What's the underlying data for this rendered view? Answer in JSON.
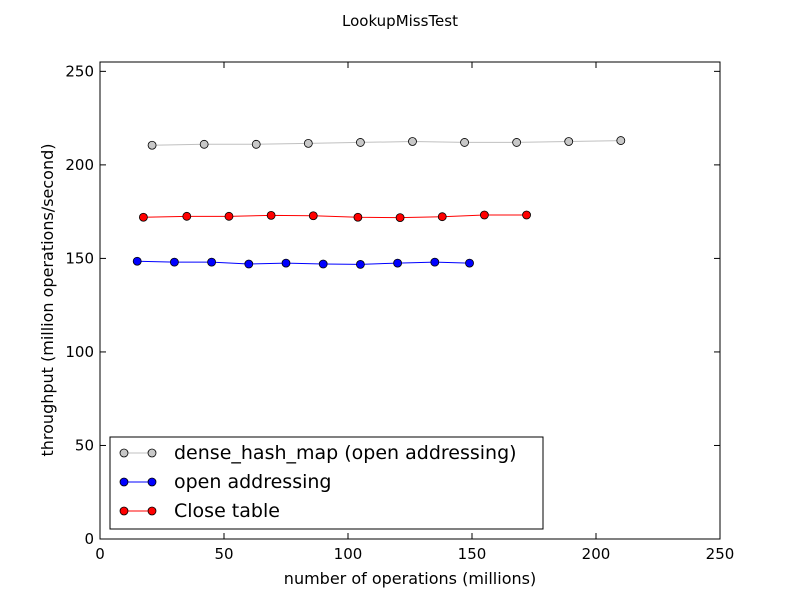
{
  "chart_data": {
    "type": "line",
    "title": "LookupMissTest",
    "xlabel": "number of operations (millions)",
    "ylabel": "throughput (million operations/second)",
    "xlim": [
      0,
      250
    ],
    "ylim": [
      0,
      255
    ],
    "xticks": [
      0,
      50,
      100,
      150,
      200,
      250
    ],
    "yticks": [
      0,
      50,
      100,
      150,
      200,
      250
    ],
    "grid": false,
    "legend_position": "lower-left",
    "series": [
      {
        "name": "dense_hash_map (open addressing)",
        "color": "#c0c0c0",
        "marker_color": "#c8c8c8",
        "x": [
          21,
          42,
          63,
          84,
          105,
          126,
          147,
          168,
          189,
          210
        ],
        "y": [
          210.5,
          211.0,
          211.0,
          211.5,
          212.0,
          212.5,
          212.0,
          212.0,
          212.5,
          213.0
        ]
      },
      {
        "name": "open addressing",
        "color": "#0000ff",
        "marker_color": "#0000ff",
        "x": [
          15,
          30,
          45,
          60,
          75,
          90,
          105,
          120,
          135,
          149
        ],
        "y": [
          148.5,
          148.0,
          148.0,
          147.0,
          147.5,
          147.0,
          146.8,
          147.5,
          148.0,
          147.5
        ]
      },
      {
        "name": "Close table",
        "color": "#ff0000",
        "marker_color": "#ff0000",
        "x": [
          17.5,
          35,
          52,
          69,
          86,
          104,
          121,
          138,
          155,
          172
        ],
        "y": [
          172.0,
          172.5,
          172.5,
          173.0,
          172.8,
          172.0,
          171.8,
          172.3,
          173.2,
          173.2
        ]
      }
    ]
  }
}
